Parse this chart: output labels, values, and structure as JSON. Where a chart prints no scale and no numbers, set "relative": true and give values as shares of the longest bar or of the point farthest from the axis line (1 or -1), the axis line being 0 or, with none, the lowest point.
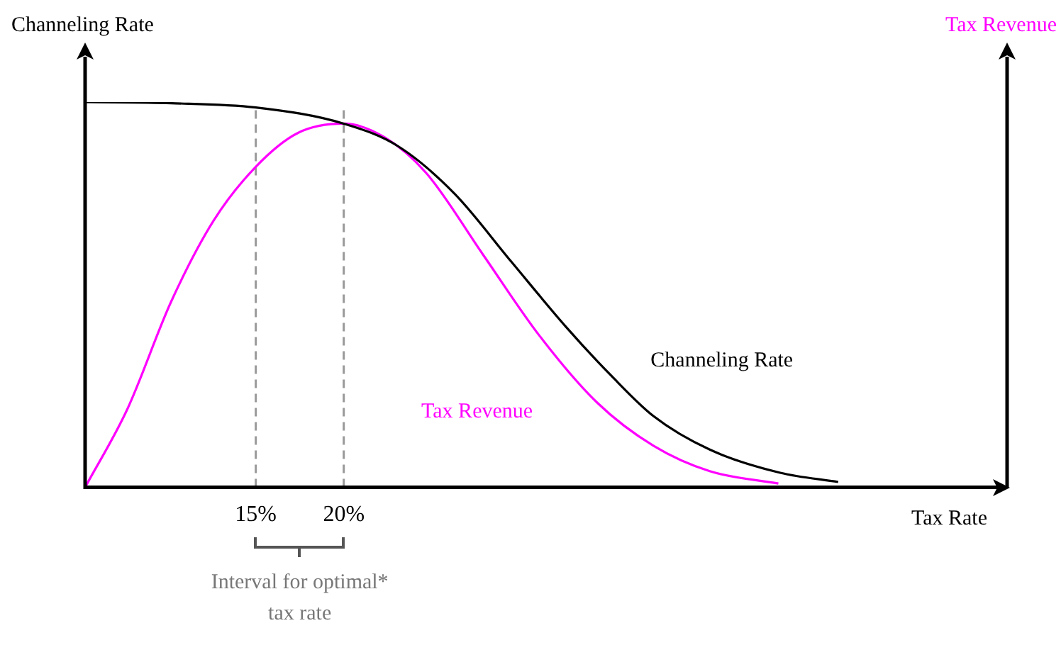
{
  "chart_data": {
    "type": "line",
    "relative": true,
    "xlabel": "Tax Rate",
    "ylabel": "Channeling Rate",
    "y2label": "Tax Revenue",
    "xlim": [
      5.3,
      57.7
    ],
    "xticks": [
      {
        "value": 15,
        "label": "15%"
      },
      {
        "value": 20,
        "label": "20%"
      }
    ],
    "tick_labels": "x",
    "grid": false,
    "marker": "none",
    "line_style": "solid",
    "series": [
      {
        "name": "Channeling Rate",
        "color": "#000000",
        "x": [
          5.3,
          10.2,
          15,
          20,
          23.1,
          26.3,
          29.5,
          32.7,
          35.2,
          37.6,
          40.8,
          44.8,
          48.1
        ],
        "values": [
          1,
          0.997,
          0.986,
          0.944,
          0.885,
          0.762,
          0.587,
          0.413,
          0.29,
          0.185,
          0.098,
          0.038,
          0.014
        ]
      },
      {
        "name": "Tax Revenue",
        "color": "#ff00ff",
        "x": [
          5.3,
          7.7,
          10.2,
          12.6,
          15,
          17.4,
          20,
          22.3,
          24.7,
          27.9,
          31.1,
          34.4,
          37.6,
          40.8,
          44.7
        ],
        "values": [
          0,
          0.203,
          0.483,
          0.692,
          0.832,
          0.92,
          0.944,
          0.909,
          0.815,
          0.605,
          0.395,
          0.22,
          0.108,
          0.042,
          0.01
        ]
      }
    ],
    "ref_lines": [
      {
        "axis": "x",
        "value": 15,
        "color": "#999999",
        "line_style": "dashed"
      },
      {
        "axis": "x",
        "value": 20,
        "color": "#999999",
        "line_style": "dashed"
      }
    ],
    "annotations": [
      "Interval for optimal* tax rate"
    ]
  }
}
